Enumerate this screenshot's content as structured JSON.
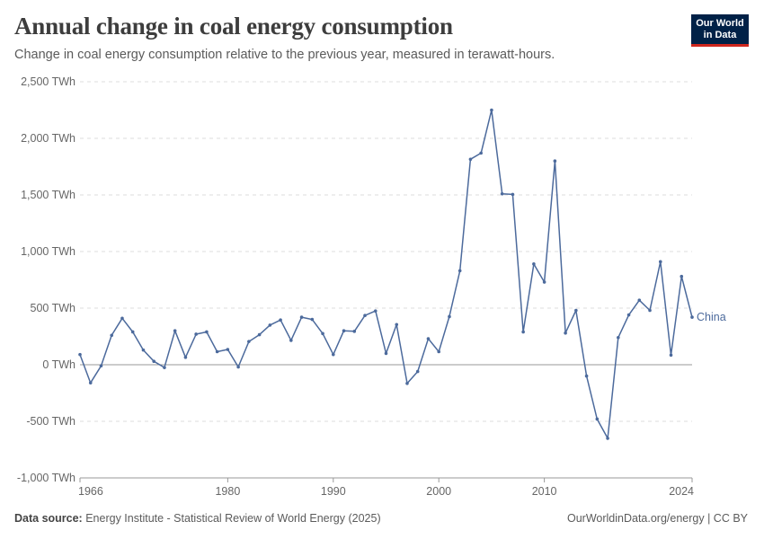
{
  "header": {
    "title": "Annual change in coal energy consumption",
    "subtitle": "Change in coal energy consumption relative to the previous year, measured in terawatt-hours."
  },
  "logo": {
    "line1": "Our World",
    "line2": "in Data"
  },
  "footer": {
    "source_label": "Data source:",
    "source_text": "Energy Institute - Statistical Review of World Energy (2025)",
    "right_text": "OurWorldinData.org/energy | CC BY"
  },
  "colors": {
    "series": "#4c6a9c",
    "grid": "#dddddd",
    "zero_line": "#999999",
    "logo_bg": "#002147",
    "logo_accent": "#ce261e"
  },
  "chart_data": {
    "type": "line",
    "title": "Annual change in coal energy consumption",
    "xlim": [
      1966,
      2024
    ],
    "ylim": [
      -1000,
      2500
    ],
    "y_ticks": [
      -1000,
      -500,
      0,
      500,
      1000,
      1500,
      2000,
      2500
    ],
    "y_tick_labels": [
      "-1,000 TWh",
      "-500 TWh",
      "0 TWh",
      "500 TWh",
      "1,000 TWh",
      "1,500 TWh",
      "2,000 TWh",
      "2,500 TWh"
    ],
    "x_ticks": [
      1966,
      1980,
      1990,
      2000,
      2010,
      2024
    ],
    "grid": "horizontal dashed",
    "series": [
      {
        "name": "China",
        "x": [
          1966,
          1967,
          1968,
          1969,
          1970,
          1971,
          1972,
          1973,
          1974,
          1975,
          1976,
          1977,
          1978,
          1979,
          1980,
          1981,
          1982,
          1983,
          1984,
          1985,
          1986,
          1987,
          1988,
          1989,
          1990,
          1991,
          1992,
          1993,
          1994,
          1995,
          1996,
          1997,
          1998,
          1999,
          2000,
          2001,
          2002,
          2003,
          2004,
          2005,
          2006,
          2007,
          2008,
          2009,
          2010,
          2011,
          2012,
          2013,
          2014,
          2015,
          2016,
          2017,
          2018,
          2019,
          2020,
          2021,
          2022,
          2023,
          2024
        ],
        "values": [
          90,
          -160,
          -10,
          260,
          410,
          290,
          130,
          30,
          -25,
          300,
          65,
          270,
          290,
          115,
          135,
          -20,
          205,
          265,
          350,
          395,
          215,
          420,
          400,
          275,
          90,
          300,
          295,
          435,
          475,
          100,
          355,
          -165,
          -60,
          230,
          115,
          425,
          830,
          1815,
          1870,
          2250,
          1510,
          1505,
          290,
          890,
          730,
          1800,
          280,
          480,
          -100,
          -480,
          -650,
          240,
          440,
          570,
          480,
          910,
          85,
          780,
          420
        ]
      }
    ]
  }
}
